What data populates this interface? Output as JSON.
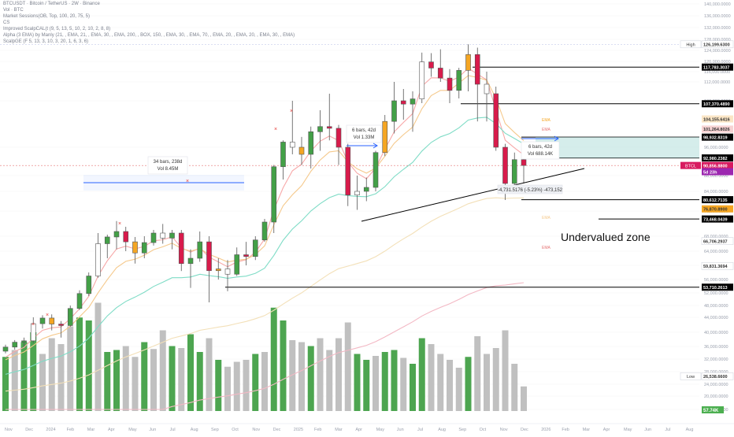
{
  "header": {
    "lines": [
      "BTCUSDT · Bitcoin / TetherUS · 2W · Binance",
      "Vol · BTC",
      "Market Sessions(OB, Top, 100, 20, 75, 5)",
      "CS",
      "Improved ScalpCAL(t (9, 5, 13, 5, 10, 2, 10, 2, 8, 8)",
      "Alpha (3 EMA) by Manly (21, , EMA, 21, , EMA, 30, , EMA, 200, , BOX, 150, , EMA, 30, , EMA, 70, , EMA, 20, , EMA, 20, , EMA, 30, , EMA)",
      "ScalpGE (F 5, 13, 3, 10, 3, 20, 1, 6, 3, 6)"
    ]
  },
  "annotation": {
    "text": "Undervalued zone"
  },
  "measure_left": {
    "line1": "34 bars, 238d",
    "line2": "Vol 8.45M"
  },
  "measure_mid": {
    "line1": "6 bars, 42d",
    "line2": "Vol 1.33M"
  },
  "measure_right": {
    "line1": "6 bars, 42d",
    "line2": "Vol 688.14K"
  },
  "measure_drop": {
    "text": "-4,731.5176 (-5.23%) -473,152"
  },
  "chart_data": {
    "type": "candlestick",
    "interval": "2W",
    "x_tick_labels": [
      "Nov",
      "Dec",
      "2024",
      "Feb",
      "Mar",
      "Apr",
      "May",
      "Jun",
      "Jul",
      "Aug",
      "Sep",
      "Oct",
      "Nov",
      "Dec",
      "2025",
      "Feb",
      "Mar",
      "Apr",
      "May",
      "Jun",
      "Jul",
      "Aug",
      "Sep",
      "Oct",
      "Nov",
      "Dec",
      "2026",
      "Feb",
      "Mar",
      "Apr",
      "May",
      "Jun",
      "Jul",
      "Aug"
    ],
    "y_tick_labels": [
      {
        "label": "140,000.0000",
        "value": 140000
      },
      {
        "label": "136,000.0000",
        "value": 136000
      },
      {
        "label": "132,000.0000",
        "value": 132000
      },
      {
        "label": "128,000.0000",
        "value": 128000
      },
      {
        "label": "124,000.0000",
        "value": 124000
      },
      {
        "label": "120,000.0000",
        "value": 120000
      },
      {
        "label": "116,000.0000",
        "value": 116000
      },
      {
        "label": "112,000.0000",
        "value": 112000
      },
      {
        "label": "108,000.0000",
        "value": 108000
      },
      {
        "label": "96,000.0000",
        "value": 96000
      },
      {
        "label": "88,000.0000",
        "value": 88000
      },
      {
        "label": "84,000.0000",
        "value": 84000
      },
      {
        "label": "76,000.0000",
        "value": 76000
      },
      {
        "label": "68,000.0000",
        "value": 68000
      },
      {
        "label": "64,000.0000",
        "value": 64000
      },
      {
        "label": "60,000.0000",
        "value": 60000
      },
      {
        "label": "56,000.0000",
        "value": 56000
      },
      {
        "label": "52,000.0000",
        "value": 52000
      },
      {
        "label": "48,000.0000",
        "value": 48000
      },
      {
        "label": "44,000.0000",
        "value": 44000
      },
      {
        "label": "40,000.0000",
        "value": 40000
      },
      {
        "label": "36,000.0000",
        "value": 36000
      },
      {
        "label": "32,000.0000",
        "value": 32000
      },
      {
        "label": "28,000.0000",
        "value": 28000
      },
      {
        "label": "24,000.0000",
        "value": 24000
      },
      {
        "label": "20,000.0000",
        "value": 20000
      },
      {
        "label": "16,000.0000",
        "value": 16000
      }
    ],
    "price_badges": [
      {
        "label": "126,199.6300",
        "value": 126199.63,
        "bg": "#ffffff",
        "fg": "#333333",
        "prefix": "High"
      },
      {
        "label": "117,783.3037",
        "value": 117783.3037,
        "bg": "#000000",
        "fg": "#ffffff"
      },
      {
        "label": "107,370.4890",
        "value": 107370.489,
        "bg": "#000000",
        "fg": "#ffffff"
      },
      {
        "label": "104,155.6416",
        "value": 104155.6416,
        "bg": "#fbe6c6",
        "fg": "#333333"
      },
      {
        "label": "101,264.8026",
        "value": 101264.8026,
        "bg": "#f7d3d3",
        "fg": "#333333"
      },
      {
        "label": "98,932.8319",
        "value": 98932.8319,
        "bg": "#000000",
        "fg": "#ffffff"
      },
      {
        "label": "92,980.2382",
        "value": 92980.2382,
        "bg": "#000000",
        "fg": "#ffffff"
      },
      {
        "label": "90,856.8800",
        "value": 90856.88,
        "bg": "#d81b60",
        "fg": "#ffffff",
        "prefix": "BTCL"
      },
      {
        "label": "5d 23h",
        "value": 89100,
        "bg": "#9c27b0",
        "fg": "#ffffff"
      },
      {
        "label": "80,612.7135",
        "value": 80612.7135,
        "bg": "#000000",
        "fg": "#ffffff"
      },
      {
        "label": "76,870.8900",
        "value": 76870.89,
        "bg": "#f5a623",
        "fg": "#333333"
      },
      {
        "label": "73,468.0439",
        "value": 73468.0439,
        "bg": "#000000",
        "fg": "#ffffff"
      },
      {
        "label": "66,706.2937",
        "value": 66706.2937,
        "bg": "#ffffff",
        "fg": "#333333"
      },
      {
        "label": "59,831.3694",
        "value": 59831.3694,
        "bg": "#ffffff",
        "fg": "#333333"
      },
      {
        "label": "53,710.2613",
        "value": 53710.2613,
        "bg": "#000000",
        "fg": "#ffffff"
      },
      {
        "label": "26,538.6600",
        "value": 26538.66,
        "bg": "#ffffff",
        "fg": "#333333",
        "prefix": "Low"
      }
    ],
    "volume_badge": {
      "label": "57.74K",
      "bg": "#4caf50",
      "fg": "#ffffff"
    },
    "levels": [
      117783.3037,
      107370.489,
      98932.8319,
      92980.2382,
      80612.7135,
      73468.0439,
      53710.2613
    ],
    "candles_ohlc": [
      [
        34500,
        36500,
        33800,
        35800
      ],
      [
        35800,
        37800,
        35000,
        37200
      ],
      [
        37200,
        38500,
        36000,
        37600
      ],
      [
        37600,
        44000,
        37000,
        42300
      ],
      [
        42300,
        44700,
        41000,
        43800
      ],
      [
        43800,
        45000,
        40500,
        42200
      ],
      [
        42200,
        43000,
        38500,
        41800
      ],
      [
        41800,
        48000,
        41500,
        47000
      ],
      [
        47000,
        52800,
        46500,
        51800
      ],
      [
        51800,
        58000,
        51000,
        57000
      ],
      [
        57000,
        69000,
        56500,
        66000
      ],
      [
        66000,
        68500,
        62000,
        67800
      ],
      [
        67800,
        72800,
        64500,
        69500
      ],
      [
        69500,
        71000,
        64000,
        66500
      ],
      [
        66500,
        67800,
        60500,
        63500
      ],
      [
        63500,
        68000,
        62000,
        66300
      ],
      [
        66300,
        70000,
        65500,
        69000
      ],
      [
        69000,
        71900,
        66000,
        67500
      ],
      [
        67500,
        70000,
        64500,
        69000
      ],
      [
        69000,
        70000,
        58400,
        60500
      ],
      [
        60500,
        64500,
        53500,
        62000
      ],
      [
        62000,
        69500,
        61000,
        66500
      ],
      [
        66500,
        68000,
        49000,
        58500
      ],
      [
        58500,
        62000,
        56000,
        59000
      ],
      [
        59000,
        61500,
        52500,
        57500
      ],
      [
        57500,
        65000,
        57000,
        63000
      ],
      [
        63000,
        66500,
        60000,
        62500
      ],
      [
        62500,
        68000,
        61500,
        67000
      ],
      [
        67000,
        73500,
        66500,
        72500
      ],
      [
        72500,
        91000,
        69000,
        90500
      ],
      [
        90500,
        98000,
        87000,
        97500
      ],
      [
        97500,
        108000,
        94000,
        96000
      ],
      [
        96000,
        99000,
        91000,
        94000
      ],
      [
        94000,
        102000,
        90000,
        100500
      ],
      [
        100500,
        106000,
        95000,
        102000
      ],
      [
        102000,
        109500,
        98000,
        101500
      ],
      [
        101500,
        102500,
        91000,
        96000
      ],
      [
        96000,
        97000,
        78000,
        82500
      ],
      [
        82500,
        88000,
        76500,
        84000
      ],
      [
        84000,
        87500,
        80000,
        85000
      ],
      [
        85000,
        95000,
        84000,
        94500
      ],
      [
        94500,
        105000,
        93500,
        103500
      ],
      [
        103500,
        112000,
        100000,
        108000
      ],
      [
        108000,
        110500,
        104000,
        107300
      ],
      [
        107300,
        110000,
        100500,
        108400
      ],
      [
        108400,
        123200,
        107500,
        119800
      ],
      [
        119800,
        123000,
        114000,
        117400
      ],
      [
        117400,
        124400,
        112000,
        113500
      ],
      [
        113500,
        117000,
        107500,
        110200
      ],
      [
        110200,
        117500,
        108500,
        116500
      ],
      [
        116500,
        126200,
        110000,
        122500
      ],
      [
        122500,
        125000,
        103500,
        111500
      ],
      [
        111500,
        116000,
        103500,
        109500
      ],
      [
        109500,
        111000,
        95000,
        96000
      ],
      [
        96000,
        97000,
        80500,
        86000
      ],
      [
        86000,
        94500,
        83500,
        92500
      ],
      [
        92500,
        94000,
        86000,
        90856
      ]
    ],
    "volumes": [
      0.55,
      0.62,
      0.7,
      0.8,
      0.58,
      0.74,
      0.68,
      0.86,
      0.95,
      0.92,
      1.1,
      0.6,
      0.62,
      0.66,
      0.55,
      0.7,
      0.63,
      0.82,
      0.66,
      0.64,
      0.78,
      0.6,
      0.74,
      0.52,
      0.45,
      0.5,
      0.52,
      0.58,
      0.6,
      1.05,
      0.92,
      0.72,
      0.7,
      0.66,
      0.74,
      0.62,
      0.74,
      0.9,
      0.58,
      0.52,
      0.56,
      0.6,
      0.62,
      0.54,
      0.48,
      0.74,
      0.68,
      0.58,
      0.52,
      0.44,
      0.55,
      0.76,
      0.58,
      0.64,
      0.82,
      0.48,
      0.25
    ],
    "ema_labels": [
      "EMA",
      "EMA",
      "EMA",
      "EMA"
    ]
  }
}
